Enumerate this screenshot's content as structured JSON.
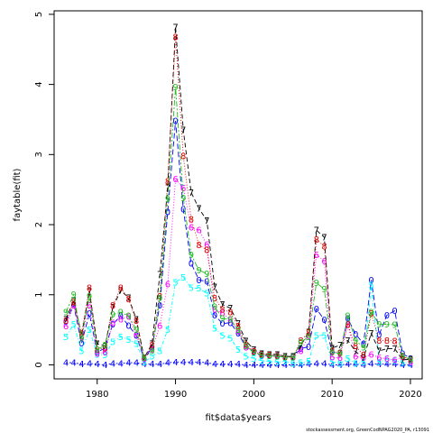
{
  "chart_data": {
    "type": "line",
    "xlabel": "fit$data$years",
    "ylabel": "faytable(fit)",
    "credit": "stockassessment.org, GreenCodNPAG2020_PA, r13091",
    "xlim": [
      1974.5,
      2021.5
    ],
    "ylim": [
      -0.2,
      5.05
    ],
    "xticks": [
      1980,
      1990,
      2000,
      2010,
      2020
    ],
    "yticks": [
      0,
      1,
      2,
      3,
      4,
      5
    ],
    "x": [
      1976,
      1977,
      1978,
      1979,
      1980,
      1981,
      1982,
      1983,
      1984,
      1985,
      1986,
      1987,
      1988,
      1989,
      1990,
      1991,
      1992,
      1993,
      1994,
      1995,
      1996,
      1997,
      1998,
      1999,
      2000,
      2001,
      2002,
      2003,
      2004,
      2005,
      2006,
      2007,
      2008,
      2009,
      2010,
      2011,
      2012,
      2013,
      2014,
      2015,
      2016,
      2017,
      2018,
      2019,
      2020
    ],
    "series": [
      {
        "name": "0",
        "color": "#0000ff",
        "dash": "6,3",
        "values": [
          0.62,
          0.85,
          0.31,
          0.73,
          0.18,
          0.24,
          0.58,
          0.7,
          0.56,
          0.42,
          0.08,
          0.25,
          0.85,
          2.18,
          3.48,
          2.22,
          1.45,
          1.21,
          1.19,
          0.71,
          0.59,
          0.6,
          0.45,
          0.25,
          0.18,
          0.13,
          0.13,
          0.12,
          0.11,
          0.12,
          0.23,
          0.26,
          0.8,
          0.64,
          0.18,
          0.17,
          0.66,
          0.44,
          0.3,
          1.21,
          0.43,
          0.71,
          0.77,
          0.16,
          0.09
        ]
      },
      {
        "name": "4",
        "color": "#0000ff",
        "dash": "2,2",
        "values": [
          0.03,
          0.03,
          0.01,
          0.02,
          0.01,
          0.0,
          0.02,
          0.02,
          0.03,
          0.03,
          0.01,
          0.01,
          0.01,
          0.03,
          0.04,
          0.04,
          0.04,
          0.04,
          0.03,
          0.01,
          0.01,
          0.01,
          0.01,
          0.0,
          0.0,
          0.0,
          0.0,
          0.0,
          0.0,
          0.0,
          0.0,
          0.01,
          0.02,
          0.02,
          0.0,
          0.0,
          0.01,
          0.01,
          0.0,
          0.02,
          0.01,
          0.01,
          0.01,
          0.0,
          0.0
        ]
      },
      {
        "name": "5",
        "color": "#00ffff",
        "dash": "4,2,1,2",
        "values": [
          0.4,
          0.58,
          0.2,
          0.5,
          0.15,
          0.14,
          0.33,
          0.4,
          0.36,
          0.3,
          0.04,
          0.12,
          0.2,
          0.5,
          1.18,
          1.25,
          1.1,
          1.09,
          1.02,
          0.52,
          0.42,
          0.38,
          0.22,
          0.12,
          0.09,
          0.06,
          0.05,
          0.04,
          0.05,
          0.02,
          0.03,
          0.05,
          0.42,
          0.42,
          0.04,
          0.02,
          0.09,
          0.02,
          0.04,
          1.14,
          0.04,
          0.08,
          0.06,
          0.03,
          0.03
        ]
      },
      {
        "name": "6",
        "color": "#ff00ff",
        "dash": "1,2",
        "values": [
          0.55,
          0.85,
          0.4,
          0.85,
          0.16,
          0.18,
          0.6,
          0.65,
          0.69,
          0.43,
          0.09,
          0.22,
          0.56,
          1.15,
          2.65,
          2.52,
          1.96,
          1.92,
          1.72,
          0.79,
          0.74,
          0.64,
          0.48,
          0.25,
          0.2,
          0.16,
          0.14,
          0.14,
          0.12,
          0.11,
          0.2,
          0.41,
          1.57,
          1.48,
          0.11,
          0.1,
          0.58,
          0.12,
          0.1,
          0.15,
          0.1,
          0.09,
          0.07,
          0.11,
          0.04
        ]
      },
      {
        "name": "7",
        "color": "#000000",
        "dash": "5,3",
        "values": [
          0.65,
          0.92,
          0.42,
          1.05,
          0.3,
          0.27,
          0.82,
          1.06,
          0.96,
          0.65,
          0.1,
          0.3,
          1.29,
          2.53,
          4.82,
          3.35,
          2.46,
          2.23,
          2.06,
          1.11,
          0.86,
          0.81,
          0.59,
          0.34,
          0.22,
          0.16,
          0.15,
          0.15,
          0.12,
          0.12,
          0.27,
          0.47,
          1.92,
          1.82,
          0.24,
          0.28,
          0.35,
          0.19,
          0.1,
          0.45,
          0.2,
          0.23,
          0.23,
          0.07,
          0.08
        ]
      },
      {
        "name": "8",
        "color": "#dd0000",
        "dash": "1,2",
        "values": [
          0.63,
          0.9,
          0.45,
          1.1,
          0.22,
          0.24,
          0.85,
          1.1,
          0.94,
          0.63,
          0.1,
          0.28,
          0.98,
          2.62,
          4.68,
          2.98,
          2.08,
          1.71,
          1.64,
          0.95,
          0.79,
          0.75,
          0.55,
          0.29,
          0.19,
          0.15,
          0.14,
          0.13,
          0.11,
          0.11,
          0.35,
          0.46,
          1.79,
          1.69,
          0.2,
          0.17,
          0.57,
          0.27,
          0.14,
          0.73,
          0.35,
          0.35,
          0.34,
          0.12,
          0.07
        ]
      },
      {
        "name": "9",
        "color": "#22bb22",
        "dash": "6,2,2,2",
        "values": [
          0.75,
          1.0,
          0.38,
          0.98,
          0.22,
          0.28,
          0.72,
          0.75,
          0.7,
          0.5,
          0.1,
          0.2,
          0.95,
          2.37,
          3.96,
          2.38,
          1.57,
          1.35,
          1.3,
          0.83,
          0.66,
          0.65,
          0.5,
          0.27,
          0.18,
          0.14,
          0.13,
          0.12,
          0.11,
          0.11,
          0.32,
          0.4,
          1.17,
          1.08,
          0.17,
          0.16,
          0.7,
          0.35,
          0.25,
          0.75,
          0.58,
          0.58,
          0.57,
          0.13,
          0.07
        ]
      }
    ]
  }
}
